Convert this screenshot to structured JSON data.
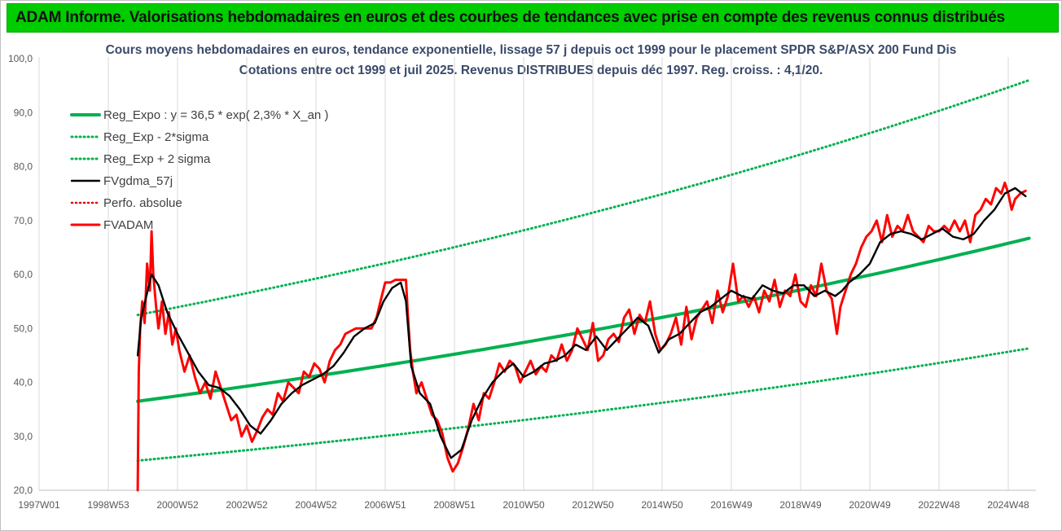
{
  "banner": {
    "title": "ADAM Informe. Valorisations hebdomadaires en euros et des courbes de tendances avec prise en compte des revenus connus distribués"
  },
  "chart_data": {
    "type": "line",
    "title_line1": "Cours moyens hebdomadaires en euros, tendance exponentielle, lissage 57 j depuis oct 1999 pour le placement SPDR S&P/ASX 200 Fund Dis",
    "title_line2": "Cotations entre oct 1999 et juil 2025. Revenus DISTRIBUES depuis déc 1997. Reg. croiss. : 4,1/20.",
    "x_tick_labels": [
      "1997W01",
      "1998W53",
      "2000W52",
      "2002W52",
      "2004W52",
      "2006W51",
      "2008W51",
      "2010W50",
      "2012W50",
      "2014W50",
      "2016W49",
      "2018W49",
      "2020W49",
      "2022W48",
      "2024W48"
    ],
    "x_tick_years": [
      1997.0,
      1999.0,
      2001.0,
      2003.0,
      2005.0,
      2007.0,
      2009.0,
      2011.0,
      2013.0,
      2015.0,
      2017.0,
      2019.0,
      2021.0,
      2023.0,
      2025.0
    ],
    "xlim": [
      1997.0,
      2025.8
    ],
    "ylim": [
      20,
      100
    ],
    "y_ticks": [
      "20,0",
      "30,0",
      "40,0",
      "50,0",
      "60,0",
      "70,0",
      "80,0",
      "90,0",
      "100,0"
    ],
    "y_tick_values": [
      20,
      30,
      40,
      50,
      60,
      70,
      80,
      90,
      100
    ],
    "grid": "vertical",
    "legend_placement": "top-left",
    "colors": {
      "reg_expo": "#00b050",
      "sigma": "#00b050",
      "fvgdma": "#000000",
      "perfo": "#e00000",
      "fvadam": "#ff0000"
    },
    "series": [
      {
        "name": "Reg_Expo : y = 36,5 * exp( 2,3% *  X_an )",
        "style": "solid-thick",
        "x": [
          1999.85,
          2025.6
        ],
        "y": [
          36.5,
          66.7
        ]
      },
      {
        "name": "Reg_Exp - 2*sigma",
        "style": "dotted",
        "x": [
          1999.85,
          2025.6
        ],
        "y": [
          25.5,
          46.3
        ]
      },
      {
        "name": "Reg_Exp + 2 sigma",
        "style": "dotted",
        "x": [
          1999.85,
          2025.6
        ],
        "y": [
          52.5,
          96.0
        ]
      },
      {
        "name": "FVgdma_57j",
        "style": "solid",
        "x": [
          1999.85,
          1999.95,
          2000.1,
          2000.25,
          2000.45,
          2000.7,
          2001.0,
          2001.3,
          2001.6,
          2001.9,
          2002.2,
          2002.5,
          2002.8,
          2003.1,
          2003.4,
          2003.7,
          2004.0,
          2004.3,
          2004.6,
          2004.9,
          2005.2,
          2005.5,
          2005.8,
          2006.1,
          2006.4,
          2006.7,
          2006.95,
          2007.2,
          2007.45,
          2007.6,
          2007.75,
          2008.0,
          2008.3,
          2008.6,
          2008.9,
          2009.2,
          2009.5,
          2009.8,
          2010.1,
          2010.4,
          2010.7,
          2011.0,
          2011.3,
          2011.6,
          2011.9,
          2012.2,
          2012.5,
          2012.8,
          2013.1,
          2013.4,
          2013.7,
          2014.0,
          2014.3,
          2014.6,
          2014.9,
          2015.2,
          2015.5,
          2015.8,
          2016.1,
          2016.4,
          2016.7,
          2017.0,
          2017.3,
          2017.6,
          2017.9,
          2018.2,
          2018.5,
          2018.8,
          2019.1,
          2019.4,
          2019.7,
          2020.0,
          2020.2,
          2020.4,
          2020.7,
          2021.0,
          2021.3,
          2021.6,
          2021.9,
          2022.2,
          2022.5,
          2022.8,
          2023.1,
          2023.4,
          2023.7,
          2024.0,
          2024.3,
          2024.6,
          2024.9,
          2025.2,
          2025.5
        ],
        "y": [
          45.0,
          52.0,
          56.0,
          60.0,
          58.0,
          53.0,
          49.0,
          45.5,
          42.0,
          39.5,
          39.0,
          37.5,
          35.0,
          32.0,
          30.5,
          33.0,
          36.0,
          38.0,
          39.5,
          40.5,
          41.5,
          43.0,
          45.5,
          48.5,
          50.0,
          51.0,
          55.0,
          57.5,
          58.5,
          55.0,
          43.0,
          38.0,
          36.0,
          30.0,
          26.0,
          27.5,
          33.0,
          37.0,
          40.0,
          42.0,
          43.5,
          41.0,
          42.0,
          43.5,
          44.0,
          45.0,
          47.0,
          46.0,
          48.5,
          46.0,
          48.0,
          50.0,
          52.0,
          50.5,
          45.5,
          48.0,
          49.0,
          51.0,
          53.0,
          54.0,
          55.5,
          57.0,
          56.0,
          55.5,
          58.0,
          57.0,
          56.5,
          58.0,
          58.0,
          56.0,
          57.0,
          56.0,
          57.0,
          58.5,
          60.0,
          62.0,
          66.0,
          67.5,
          68.0,
          67.5,
          66.5,
          67.5,
          68.5,
          67.0,
          66.5,
          67.5,
          70.0,
          72.0,
          75.0,
          76.0,
          74.5
        ]
      },
      {
        "name": "Perfo. absolue",
        "style": "dotted",
        "x": [],
        "y": []
      },
      {
        "name": "FVADAM",
        "style": "solid-thick",
        "x": [
          1999.85,
          1999.88,
          1999.92,
          1999.98,
          2000.05,
          2000.12,
          2000.2,
          2000.25,
          2000.3,
          2000.38,
          2000.45,
          2000.55,
          2000.65,
          2000.75,
          2000.85,
          2000.95,
          2001.05,
          2001.2,
          2001.35,
          2001.5,
          2001.65,
          2001.8,
          2001.95,
          2002.1,
          2002.25,
          2002.4,
          2002.55,
          2002.7,
          2002.85,
          2003.0,
          2003.15,
          2003.3,
          2003.45,
          2003.6,
          2003.75,
          2003.9,
          2004.05,
          2004.2,
          2004.35,
          2004.5,
          2004.65,
          2004.8,
          2004.95,
          2005.1,
          2005.25,
          2005.4,
          2005.55,
          2005.7,
          2005.85,
          2006.0,
          2006.15,
          2006.3,
          2006.45,
          2006.6,
          2006.75,
          2006.9,
          2007.0,
          2007.15,
          2007.3,
          2007.45,
          2007.6,
          2007.65,
          2007.72,
          2007.8,
          2007.9,
          2008.05,
          2008.2,
          2008.35,
          2008.5,
          2008.65,
          2008.8,
          2008.95,
          2009.1,
          2009.25,
          2009.4,
          2009.55,
          2009.7,
          2009.85,
          2010.0,
          2010.15,
          2010.3,
          2010.45,
          2010.6,
          2010.75,
          2010.9,
          2011.05,
          2011.2,
          2011.35,
          2011.5,
          2011.65,
          2011.8,
          2011.95,
          2012.1,
          2012.25,
          2012.4,
          2012.55,
          2012.7,
          2012.85,
          2013.0,
          2013.15,
          2013.3,
          2013.45,
          2013.6,
          2013.75,
          2013.9,
          2014.05,
          2014.2,
          2014.35,
          2014.5,
          2014.65,
          2014.8,
          2014.95,
          2015.1,
          2015.25,
          2015.4,
          2015.55,
          2015.7,
          2015.85,
          2016.0,
          2016.15,
          2016.3,
          2016.45,
          2016.6,
          2016.75,
          2016.9,
          2017.05,
          2017.2,
          2017.35,
          2017.5,
          2017.65,
          2017.8,
          2017.95,
          2018.1,
          2018.25,
          2018.4,
          2018.55,
          2018.7,
          2018.85,
          2019.0,
          2019.15,
          2019.3,
          2019.45,
          2019.6,
          2019.75,
          2019.9,
          2020.05,
          2020.15,
          2020.25,
          2020.35,
          2020.45,
          2020.6,
          2020.75,
          2020.9,
          2021.05,
          2021.2,
          2021.35,
          2021.5,
          2021.65,
          2021.8,
          2021.95,
          2022.1,
          2022.25,
          2022.4,
          2022.55,
          2022.7,
          2022.85,
          2023.0,
          2023.15,
          2023.3,
          2023.45,
          2023.6,
          2023.75,
          2023.9,
          2024.05,
          2024.2,
          2024.35,
          2024.5,
          2024.65,
          2024.8,
          2024.9,
          2025.0,
          2025.1,
          2025.2,
          2025.35,
          2025.5
        ],
        "y": [
          20.0,
          42.0,
          50.0,
          55.0,
          51.0,
          62.0,
          57.0,
          68.0,
          60.0,
          54.0,
          50.0,
          55.0,
          49.0,
          53.0,
          47.0,
          50.0,
          46.0,
          42.0,
          45.0,
          41.0,
          38.0,
          40.0,
          37.0,
          42.0,
          39.0,
          36.0,
          33.0,
          34.0,
          30.0,
          32.0,
          29.0,
          31.0,
          33.5,
          35.0,
          34.0,
          38.0,
          36.5,
          40.0,
          39.0,
          38.0,
          42.0,
          41.0,
          43.5,
          42.5,
          40.0,
          44.0,
          46.0,
          47.0,
          49.0,
          49.5,
          50.0,
          50.0,
          50.0,
          50.0,
          52.0,
          56.0,
          58.5,
          58.5,
          59.0,
          59.0,
          59.0,
          53.0,
          46.0,
          42.0,
          38.0,
          40.0,
          37.0,
          34.0,
          33.0,
          30.5,
          26.0,
          23.5,
          25.0,
          28.0,
          31.5,
          36.0,
          33.0,
          38.0,
          37.0,
          40.0,
          43.5,
          42.0,
          44.0,
          43.0,
          40.0,
          42.0,
          44.0,
          41.5,
          43.0,
          42.0,
          45.0,
          44.0,
          47.0,
          44.0,
          46.0,
          50.0,
          48.0,
          46.0,
          51.0,
          44.0,
          45.0,
          48.0,
          49.0,
          47.5,
          52.0,
          53.5,
          49.0,
          52.5,
          51.0,
          55.0,
          49.0,
          46.0,
          47.0,
          49.0,
          52.0,
          47.0,
          54.0,
          48.0,
          52.0,
          53.5,
          55.0,
          51.0,
          57.0,
          53.0,
          56.0,
          62.0,
          55.0,
          56.0,
          54.0,
          56.0,
          53.0,
          57.0,
          55.0,
          59.0,
          54.0,
          57.0,
          56.0,
          60.0,
          55.0,
          54.0,
          58.0,
          56.0,
          62.0,
          57.0,
          55.5,
          49.0,
          54.0,
          56.0,
          58.0,
          60.0,
          62.0,
          65.0,
          67.0,
          68.0,
          70.0,
          66.0,
          71.0,
          67.0,
          69.0,
          68.0,
          71.0,
          68.0,
          67.0,
          66.0,
          69.0,
          68.0,
          68.0,
          69.0,
          68.0,
          70.0,
          68.0,
          70.0,
          66.0,
          71.0,
          72.0,
          74.0,
          73.0,
          76.0,
          75.0,
          77.0,
          75.0,
          72.0,
          74.0,
          75.0,
          75.5
        ]
      }
    ]
  }
}
